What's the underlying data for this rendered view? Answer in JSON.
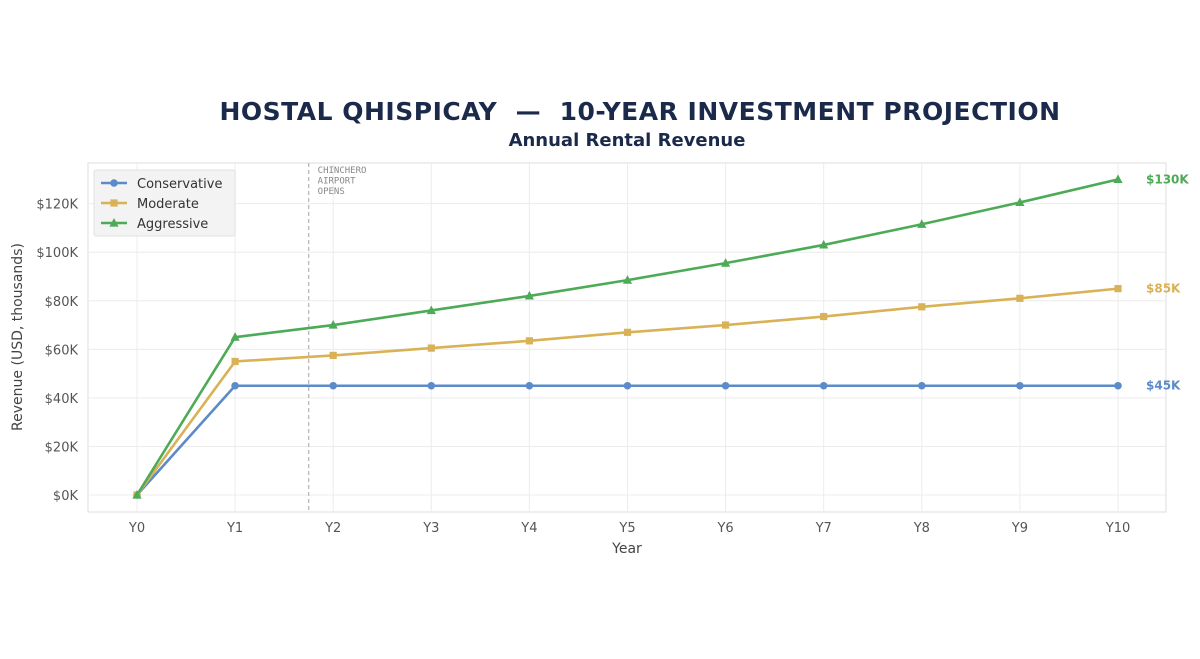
{
  "chart_data": {
    "type": "line",
    "title": "HOSTAL QHISPICAY  —  10-YEAR INVESTMENT PROJECTION",
    "subtitle": "Annual Rental Revenue",
    "xlabel": "Year",
    "ylabel": "Revenue (USD, thousands)",
    "categories": [
      "Y0",
      "Y1",
      "Y2",
      "Y3",
      "Y4",
      "Y5",
      "Y6",
      "Y7",
      "Y8",
      "Y9",
      "Y10"
    ],
    "ylim": [
      -6,
      136
    ],
    "yticks": [
      0,
      20,
      40,
      60,
      80,
      100,
      120
    ],
    "ytick_labels": [
      "$0K",
      "$20K",
      "$40K",
      "$60K",
      "$80K",
      "$100K",
      "$120K"
    ],
    "grid": true,
    "legend_position": "top-left",
    "series": [
      {
        "name": "Conservative",
        "color": "#5b8bc9",
        "marker": "circle",
        "values": [
          0,
          45,
          45,
          45,
          45,
          45,
          45,
          45,
          45,
          45,
          45
        ],
        "end_label": "$45K"
      },
      {
        "name": "Moderate",
        "color": "#d9b257",
        "marker": "square",
        "values": [
          0,
          55,
          57.5,
          60.5,
          63.5,
          67,
          70,
          73.5,
          77.5,
          81,
          85
        ],
        "end_label": "$85K"
      },
      {
        "name": "Aggressive",
        "color": "#4daa57",
        "marker": "triangle",
        "values": [
          0,
          65,
          70,
          76,
          82,
          88.5,
          95.5,
          103,
          111.5,
          120.5,
          130
        ],
        "end_label": "$130K"
      }
    ],
    "annotation": {
      "lines": [
        "CHINCHERO",
        "AIRPORT",
        "OPENS"
      ],
      "x_value": 1.75
    }
  }
}
